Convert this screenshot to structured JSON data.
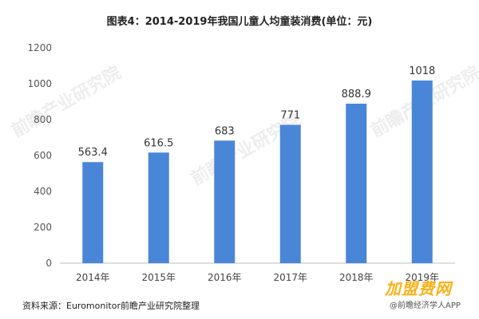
{
  "chart_data": {
    "type": "bar",
    "title": "图表4：2014-2019年我国儿童人均童装消费(单位：元)",
    "categories": [
      "2014年",
      "2015年",
      "2016年",
      "2017年",
      "2018年",
      "2019年"
    ],
    "values": [
      563.4,
      616.5,
      683,
      771,
      888.9,
      1018
    ],
    "value_labels": [
      "563.4",
      "616.5",
      "683",
      "771",
      "888.9",
      "1018"
    ],
    "ylim": [
      0,
      1200
    ],
    "yticks": [
      0,
      200,
      400,
      600,
      800,
      1000,
      1200
    ],
    "ytick_labels": [
      "0",
      "200",
      "400",
      "600",
      "800",
      "1000",
      "1200"
    ],
    "grid": false,
    "bar_color": "#4a86d8"
  },
  "source": "资料来源：Euromonitor前瞻产业研究院整理",
  "watermark": "前瞻产业研究院",
  "brand": "加盟费网",
  "brand_sub": "@前瞻经济学人APP"
}
